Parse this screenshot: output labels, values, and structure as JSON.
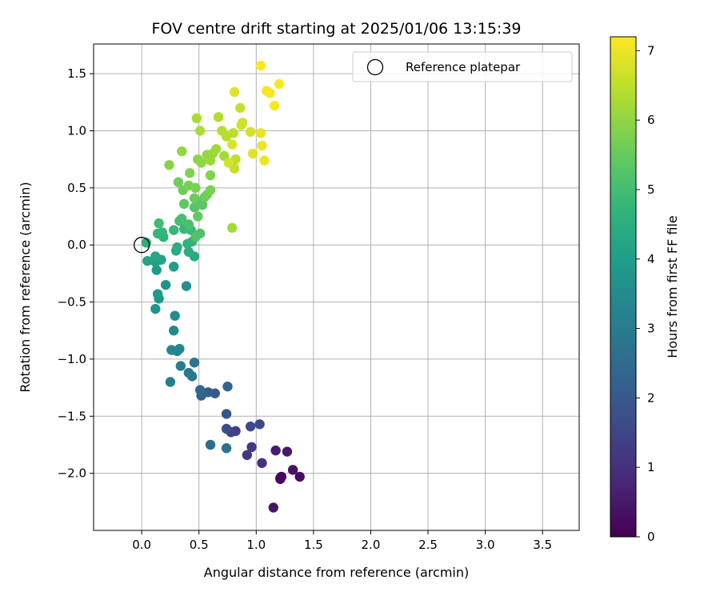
{
  "chart_data": {
    "type": "scatter",
    "title": "FOV centre drift starting at 2025/01/06 13:15:39",
    "xlabel": "Angular distance from reference (arcmin)",
    "ylabel": "Rotation from reference (arcmin)",
    "xlim": [
      -0.42,
      3.82
    ],
    "ylim": [
      -2.5,
      1.76
    ],
    "xticks": [
      0.0,
      0.5,
      1.0,
      1.5,
      2.0,
      2.5,
      3.0,
      3.5
    ],
    "xtick_labels": [
      "0.0",
      "0.5",
      "1.0",
      "1.5",
      "2.0",
      "2.5",
      "3.0",
      "3.5"
    ],
    "yticks": [
      1.5,
      1.0,
      0.5,
      0.0,
      -0.5,
      -1.0,
      -1.5,
      -2.0
    ],
    "ytick_labels": [
      "1.5",
      "1.0",
      "0.5",
      "0.0",
      "−0.5",
      "−1.0",
      "−1.5",
      "−2.0"
    ],
    "grid": true,
    "legend": {
      "position": "top-right",
      "entries": [
        "Reference platepar"
      ]
    },
    "reference_point": {
      "x": 0.0,
      "y": 0.0
    },
    "colorbar": {
      "label": "Hours from first FF file",
      "min": 0,
      "max": 7.2,
      "ticks": [
        0,
        1,
        2,
        3,
        4,
        5,
        6,
        7
      ],
      "tick_labels": [
        "0",
        "1",
        "2",
        "3",
        "4",
        "5",
        "6",
        "7"
      ],
      "colormap": "viridis"
    },
    "series": [
      {
        "points": [
          [
            1.21,
            -2.05,
            0.05
          ],
          [
            1.22,
            -2.03,
            0.1
          ],
          [
            1.21,
            -2.04,
            0.15
          ],
          [
            1.38,
            -2.03,
            0.25
          ],
          [
            1.32,
            -1.97,
            0.35
          ],
          [
            1.15,
            -2.3,
            0.45
          ],
          [
            1.27,
            -1.81,
            0.5
          ],
          [
            1.17,
            -1.8,
            0.6
          ],
          [
            1.05,
            -1.91,
            1.0
          ],
          [
            0.92,
            -1.84,
            1.1
          ],
          [
            0.96,
            -1.77,
            1.2
          ],
          [
            0.82,
            -1.63,
            1.35
          ],
          [
            0.78,
            -1.64,
            1.45
          ],
          [
            1.03,
            -1.57,
            1.55
          ],
          [
            0.95,
            -1.59,
            1.6
          ],
          [
            0.74,
            -1.61,
            1.7
          ],
          [
            0.74,
            -1.48,
            1.85
          ],
          [
            0.64,
            -1.3,
            2.0
          ],
          [
            0.58,
            -1.29,
            2.1
          ],
          [
            0.52,
            -1.32,
            2.2
          ],
          [
            0.75,
            -1.24,
            2.3
          ],
          [
            0.51,
            -1.27,
            2.4
          ],
          [
            0.6,
            -1.75,
            2.55
          ],
          [
            0.74,
            -1.78,
            2.65
          ],
          [
            0.46,
            -1.03,
            2.75
          ],
          [
            0.44,
            -1.15,
            2.85
          ],
          [
            0.41,
            -1.12,
            2.9
          ],
          [
            0.34,
            -1.06,
            3.0
          ],
          [
            0.25,
            -1.2,
            3.1
          ],
          [
            0.31,
            -0.93,
            3.15
          ],
          [
            0.26,
            -0.92,
            3.25
          ],
          [
            0.33,
            -0.91,
            3.3
          ],
          [
            0.28,
            -0.75,
            3.4
          ],
          [
            0.29,
            -0.62,
            3.5
          ],
          [
            0.39,
            -0.36,
            3.6
          ],
          [
            0.12,
            -0.56,
            3.7
          ],
          [
            0.21,
            -0.35,
            3.75
          ],
          [
            0.15,
            -0.47,
            3.8
          ],
          [
            0.14,
            -0.43,
            3.9
          ],
          [
            0.13,
            -0.22,
            3.95
          ],
          [
            0.28,
            -0.19,
            4.0
          ],
          [
            0.12,
            -0.15,
            4.1
          ],
          [
            0.17,
            -0.13,
            4.15
          ],
          [
            0.05,
            -0.14,
            4.2
          ],
          [
            0.12,
            -0.1,
            4.3
          ],
          [
            0.3,
            -0.05,
            4.35
          ],
          [
            0.41,
            -0.06,
            4.4
          ],
          [
            0.46,
            -0.1,
            4.45
          ],
          [
            0.31,
            -0.02,
            4.5
          ],
          [
            0.04,
            0.02,
            4.55
          ],
          [
            0.4,
            0.01,
            4.6
          ],
          [
            0.44,
            0.03,
            4.62
          ],
          [
            0.19,
            0.07,
            4.65
          ],
          [
            0.18,
            0.11,
            4.7
          ],
          [
            0.14,
            0.1,
            4.75
          ],
          [
            0.28,
            0.13,
            4.8
          ],
          [
            0.37,
            0.14,
            4.85
          ],
          [
            0.43,
            0.13,
            4.9
          ],
          [
            0.15,
            0.19,
            4.95
          ],
          [
            0.33,
            0.21,
            5.0
          ],
          [
            0.35,
            0.23,
            5.05
          ],
          [
            0.41,
            0.18,
            5.1
          ],
          [
            0.51,
            0.1,
            5.15
          ],
          [
            0.47,
            0.07,
            5.2
          ],
          [
            0.46,
            0.33,
            5.25
          ],
          [
            0.49,
            0.38,
            5.3
          ],
          [
            0.53,
            0.35,
            5.35
          ],
          [
            0.37,
            0.36,
            5.4
          ],
          [
            0.49,
            0.25,
            5.45
          ],
          [
            0.55,
            0.42,
            5.5
          ],
          [
            0.46,
            0.41,
            5.55
          ],
          [
            0.57,
            0.44,
            5.6
          ],
          [
            0.32,
            0.55,
            5.62
          ],
          [
            0.36,
            0.48,
            5.65
          ],
          [
            0.41,
            0.52,
            5.7
          ],
          [
            0.47,
            0.5,
            5.72
          ],
          [
            0.6,
            0.48,
            5.75
          ],
          [
            0.42,
            0.63,
            5.8
          ],
          [
            0.6,
            0.61,
            5.85
          ],
          [
            0.24,
            0.7,
            5.9
          ],
          [
            0.49,
            0.75,
            5.95
          ],
          [
            0.52,
            0.72,
            6.0
          ],
          [
            0.35,
            0.82,
            6.02
          ],
          [
            0.57,
            0.79,
            6.05
          ],
          [
            0.6,
            0.74,
            6.1
          ],
          [
            0.62,
            0.8,
            6.12
          ],
          [
            0.65,
            0.84,
            6.15
          ],
          [
            0.72,
            0.78,
            6.2
          ],
          [
            0.79,
            0.15,
            6.22
          ],
          [
            0.48,
            1.11,
            6.25
          ],
          [
            0.51,
            1.0,
            6.3
          ],
          [
            0.67,
            1.12,
            6.35
          ],
          [
            0.7,
            1.0,
            6.4
          ],
          [
            0.74,
            0.95,
            6.42
          ],
          [
            0.8,
            0.98,
            6.45
          ],
          [
            0.82,
            0.75,
            6.5
          ],
          [
            0.81,
            0.67,
            6.55
          ],
          [
            0.86,
            1.2,
            6.6
          ],
          [
            0.87,
            1.05,
            6.65
          ],
          [
            0.88,
            1.07,
            6.7
          ],
          [
            0.95,
            0.99,
            6.72
          ],
          [
            0.76,
            0.72,
            6.75
          ],
          [
            0.79,
            0.88,
            6.8
          ],
          [
            0.81,
            1.34,
            6.85
          ],
          [
            0.97,
            0.8,
            6.9
          ],
          [
            1.04,
            0.98,
            6.95
          ],
          [
            1.05,
            0.87,
            7.0
          ],
          [
            1.07,
            0.74,
            7.05
          ],
          [
            1.09,
            1.35,
            7.1
          ],
          [
            1.12,
            1.33,
            7.12
          ],
          [
            1.16,
            1.22,
            7.15
          ],
          [
            1.2,
            1.41,
            7.18
          ],
          [
            1.04,
            1.57,
            7.2
          ]
        ]
      }
    ]
  }
}
